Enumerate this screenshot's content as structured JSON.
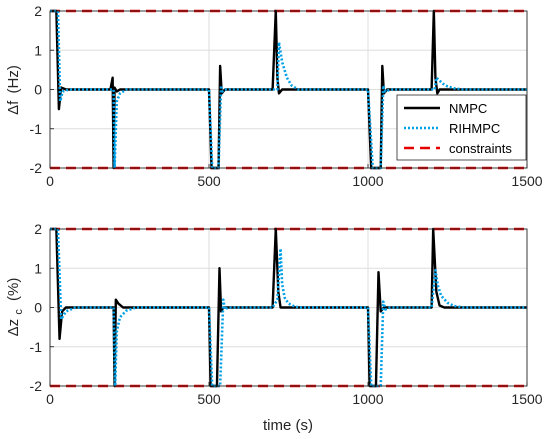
{
  "colors": {
    "nmpc": "#000000",
    "rihmpc": "#00a0e6",
    "constraints": "#e60000",
    "grid": "#dedede",
    "axis": "#262626"
  },
  "legend": {
    "items": [
      {
        "label": "NMPC",
        "key": "nmpc",
        "style": "solid"
      },
      {
        "label": "RIHMPC",
        "key": "rihmpc",
        "style": "dotted"
      },
      {
        "label": "constraints",
        "key": "constraints",
        "style": "dashed"
      }
    ],
    "location": "inside lower-right of top panel"
  },
  "chart_data": [
    {
      "type": "line",
      "title": "",
      "ylabel_main": "Δf",
      "ylabel_unit": "(Hz)",
      "xlabel": "",
      "xlim": [
        0,
        1500
      ],
      "ylim": [
        -2,
        2
      ],
      "xticks": [
        "0",
        "500",
        "1000",
        "1500"
      ],
      "yticks": [
        "2",
        "1",
        "0",
        "-1",
        "-2"
      ],
      "grid": true,
      "series": [
        {
          "name": "NMPC",
          "key": "nmpc",
          "style": "solid",
          "x": [
            0,
            15,
            20,
            28,
            35,
            50,
            150,
            190,
            197,
            200,
            203,
            210,
            220,
            240,
            500,
            508,
            510,
            512,
            520,
            530,
            535,
            540,
            550,
            700,
            710,
            715,
            720,
            730,
            750,
            1000,
            1010,
            1015,
            1020,
            1030,
            1040,
            1045,
            1050,
            1060,
            1200,
            1207,
            1212,
            1218,
            1225,
            1240,
            1500
          ],
          "y": [
            2,
            2,
            2,
            -0.5,
            0.05,
            0,
            0,
            0,
            0.3,
            -2,
            0.05,
            -0.05,
            0,
            0,
            0,
            -2,
            -2,
            -2,
            -2,
            -2,
            0.6,
            -0.1,
            0,
            0,
            2,
            0.3,
            -0.1,
            0,
            0,
            0,
            -2,
            -2,
            -2,
            -2,
            -2,
            0.6,
            -0.1,
            0,
            0,
            2,
            0.3,
            -0.1,
            0,
            0,
            0
          ]
        },
        {
          "name": "RIHMPC",
          "key": "rihmpc",
          "style": "dotted",
          "x": [
            0,
            20,
            25,
            32,
            40,
            60,
            150,
            200,
            203,
            210,
            220,
            240,
            260,
            500,
            510,
            530,
            538,
            542,
            550,
            570,
            700,
            715,
            720,
            730,
            745,
            760,
            780,
            1000,
            1015,
            1030,
            1040,
            1048,
            1055,
            1070,
            1200,
            1210,
            1215,
            1222,
            1235,
            1250,
            1270,
            1300,
            1500
          ],
          "y": [
            2,
            2,
            2,
            -0.3,
            -0.05,
            0,
            0,
            0,
            -2,
            -0.3,
            -0.1,
            0,
            0,
            0,
            -2,
            -2,
            0.1,
            -0.05,
            0,
            0,
            0,
            0,
            1.2,
            0.7,
            0.3,
            0.1,
            0,
            0,
            -2,
            -2,
            -2,
            0.1,
            -0.05,
            0,
            0,
            0,
            0.3,
            0.25,
            0.15,
            0.08,
            0.03,
            0,
            0
          ]
        },
        {
          "name": "constraints",
          "key": "constraints",
          "style": "dashed",
          "x": [
            0,
            1500
          ],
          "y": [
            2,
            2
          ],
          "y2": [
            -2,
            -2
          ]
        }
      ]
    },
    {
      "type": "line",
      "title": "",
      "ylabel_main": "Δz",
      "ylabel_sub": "c",
      "ylabel_unit": "(%)",
      "xlabel": "time (s)",
      "xlim": [
        0,
        1500
      ],
      "ylim": [
        -2,
        2
      ],
      "xticks": [
        "0",
        "500",
        "1000",
        "1500"
      ],
      "yticks": [
        "2",
        "1",
        "0",
        "-1",
        "-2"
      ],
      "grid": true,
      "series": [
        {
          "name": "NMPC",
          "key": "nmpc",
          "style": "solid",
          "x": [
            0,
            15,
            20,
            30,
            38,
            50,
            80,
            200,
            203,
            207,
            215,
            230,
            260,
            500,
            505,
            525,
            533,
            538,
            545,
            560,
            700,
            710,
            718,
            725,
            740,
            1000,
            1005,
            1025,
            1033,
            1040,
            1050,
            1070,
            1200,
            1205,
            1215,
            1225,
            1240,
            1500
          ],
          "y": [
            2,
            2,
            2,
            -0.8,
            -0.1,
            0,
            0,
            0,
            -2,
            0.2,
            0.1,
            0,
            0,
            0,
            -2,
            -2,
            1.0,
            -0.1,
            0,
            0,
            0,
            2,
            0.4,
            0,
            0,
            0,
            -2,
            -2,
            0.9,
            -0.1,
            0,
            0,
            0,
            2,
            0.4,
            0.05,
            0,
            0
          ]
        },
        {
          "name": "RIHMPC",
          "key": "rihmpc",
          "style": "dotted",
          "x": [
            0,
            20,
            25,
            35,
            50,
            80,
            200,
            205,
            210,
            220,
            240,
            270,
            500,
            510,
            535,
            545,
            550,
            560,
            580,
            700,
            715,
            725,
            730,
            738,
            750,
            770,
            790,
            1000,
            1010,
            1040,
            1048,
            1055,
            1070,
            1200,
            1212,
            1220,
            1230,
            1250,
            1270,
            1300,
            1500
          ],
          "y": [
            2,
            2,
            2,
            -0.3,
            -0.1,
            0,
            0,
            -2,
            -0.6,
            -0.25,
            -0.08,
            0,
            0,
            -2,
            -2,
            0.2,
            -0.05,
            0,
            0,
            0,
            0.2,
            1.5,
            0.6,
            0.25,
            0.1,
            0.02,
            0,
            0,
            -2,
            -2,
            0.15,
            -0.05,
            0,
            0,
            0.95,
            0.55,
            0.3,
            0.12,
            0.04,
            0,
            0
          ]
        },
        {
          "name": "constraints",
          "key": "constraints",
          "style": "dashed",
          "x": [
            0,
            1500
          ],
          "y": [
            2,
            2
          ],
          "y2": [
            -2,
            -2
          ]
        }
      ]
    }
  ]
}
